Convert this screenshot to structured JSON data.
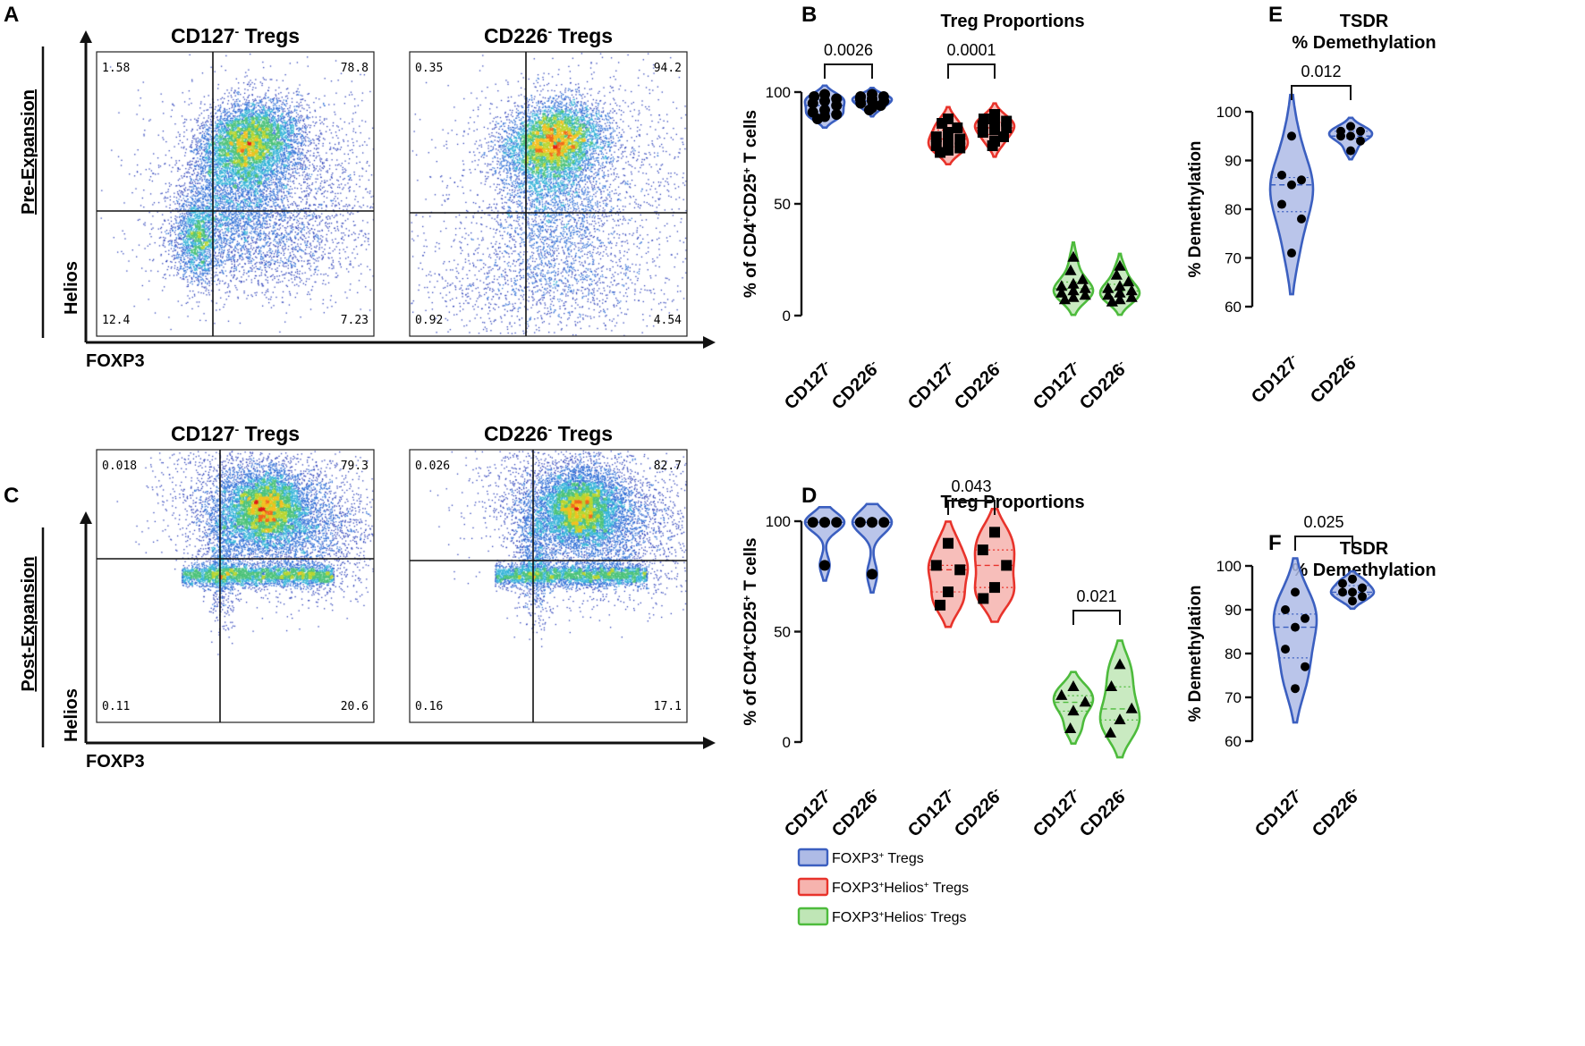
{
  "figure": {
    "panels": {
      "A": "A",
      "B": "B",
      "C": "C",
      "D": "D",
      "E": "E",
      "F": "F"
    }
  },
  "colors": {
    "blue": "#3b5fc0",
    "blue_fill": "#aebbe6",
    "red": "#e8332b",
    "red_fill": "#f6b3ae",
    "green": "#4dbb3c",
    "green_fill": "#bfe6b6",
    "axis": "#111111"
  },
  "flow": {
    "pre": {
      "side_label": "Pre-Expansion",
      "y_axis": "Helios",
      "x_axis": "FOXP3",
      "plots": [
        {
          "title_main": "CD127",
          "title_sup": "-",
          "title_rest": " Tregs",
          "q": {
            "ul": "1.58",
            "ur": "78.8",
            "ll": "12.4",
            "lr": "7.23"
          }
        },
        {
          "title_main": "CD226",
          "title_sup": "-",
          "title_rest": " Tregs",
          "q": {
            "ul": "0.35",
            "ur": "94.2",
            "ll": "0.92",
            "lr": "4.54"
          }
        }
      ]
    },
    "post": {
      "side_label": "Post-Expansion",
      "y_axis": "Helios",
      "x_axis": "FOXP3",
      "plots": [
        {
          "title_main": "CD127",
          "title_sup": "-",
          "title_rest": " Tregs",
          "q": {
            "ul": "0.018",
            "ur": "79.3",
            "ll": "0.11",
            "lr": "20.6"
          }
        },
        {
          "title_main": "CD226",
          "title_sup": "-",
          "title_rest": " Tregs",
          "q": {
            "ul": "0.026",
            "ur": "82.7",
            "ll": "0.16",
            "lr": "17.1"
          }
        }
      ]
    }
  },
  "legend": {
    "items": [
      {
        "text_a": "FOXP3",
        "sup_a": "+",
        "text_b": " Tregs",
        "sup_b": "",
        "text_c": "",
        "color": "blue"
      },
      {
        "text_a": "FOXP3",
        "sup_a": "+",
        "text_b": "Helios",
        "sup_b": "+",
        "text_c": " Tregs",
        "color": "red"
      },
      {
        "text_a": "FOXP3",
        "sup_a": "+",
        "text_b": "Helios",
        "sup_b": "-",
        "text_c": " Tregs",
        "color": "green"
      }
    ]
  },
  "chart_data": [
    {
      "id": "B",
      "type": "violin",
      "title": "Treg Proportions",
      "ylabel": "% of CD4+CD25+ T cells",
      "ylim": [
        0,
        100
      ],
      "yticks": [
        0,
        50,
        100
      ],
      "categories": [
        "CD127-",
        "CD226-",
        "CD127-",
        "CD226-",
        "CD127-",
        "CD226-"
      ],
      "series": [
        {
          "name": "FOXP3+ Tregs",
          "color": "blue",
          "marker": "circle",
          "groups": [
            [
              99,
              98,
              97,
              96,
              95,
              94,
              92,
              91,
              90,
              89,
              88
            ],
            [
              99,
              98,
              98,
              97,
              97,
              96,
              96,
              95,
              94,
              93,
              92
            ]
          ]
        },
        {
          "name": "FOXP3+Helios+ Tregs",
          "color": "red",
          "marker": "square",
          "groups": [
            [
              88,
              86,
              84,
              82,
              80,
              79,
              78,
              76,
              75,
              74,
              73
            ],
            [
              90,
              88,
              87,
              86,
              85,
              84,
              83,
              82,
              80,
              78,
              76
            ]
          ]
        },
        {
          "name": "FOXP3+Helios- Tregs",
          "color": "green",
          "marker": "triangle",
          "groups": [
            [
              26,
              20,
              16,
              14,
              13,
              12,
              11,
              10,
              9,
              8,
              7
            ],
            [
              22,
              18,
              15,
              13,
              12,
              11,
              10,
              9,
              8,
              7,
              6
            ]
          ]
        }
      ],
      "comparisons": [
        {
          "pair": [
            0,
            1
          ],
          "p": "0.0026"
        },
        {
          "pair": [
            2,
            3
          ],
          "p": "0.0001"
        }
      ]
    },
    {
      "id": "D",
      "type": "violin",
      "title": "Treg Proportions",
      "ylabel": "% of CD4+CD25+ T cells",
      "ylim": [
        0,
        100
      ],
      "yticks": [
        0,
        50,
        100
      ],
      "categories": [
        "CD127-",
        "CD226-",
        "CD127-",
        "CD226-",
        "CD127-",
        "CD226-"
      ],
      "series": [
        {
          "name": "FOXP3+ Tregs",
          "color": "blue",
          "marker": "circle",
          "groups": [
            [
              99.5,
              99.5,
              99.5,
              99.5,
              80
            ],
            [
              99.5,
              99.5,
              99.5,
              99.5,
              76
            ]
          ]
        },
        {
          "name": "FOXP3+Helios+ Tregs",
          "color": "red",
          "marker": "square",
          "groups": [
            [
              90,
              80,
              78,
              68,
              62
            ],
            [
              95,
              87,
              80,
              70,
              65
            ]
          ]
        },
        {
          "name": "FOXP3+Helios- Tregs",
          "color": "green",
          "marker": "triangle",
          "groups": [
            [
              25,
              21,
              18,
              14,
              6
            ],
            [
              35,
              25,
              15,
              10,
              4
            ]
          ]
        }
      ],
      "comparisons": [
        {
          "pair": [
            2,
            3
          ],
          "p": "0.043"
        },
        {
          "pair": [
            4,
            5
          ],
          "p": "0.021"
        }
      ]
    },
    {
      "id": "E",
      "type": "violin",
      "title": "TSDR",
      "subtitle": "% Demethylation",
      "ylabel": "% Demethylation",
      "ylim": [
        60,
        100
      ],
      "yticks": [
        60,
        70,
        80,
        90,
        100
      ],
      "categories": [
        "CD127-",
        "CD226-"
      ],
      "series": [
        {
          "name": "CD127-",
          "color": "blue",
          "marker": "circle",
          "groups": [
            [
              95,
              87,
              86,
              85,
              81,
              78,
              71
            ]
          ]
        },
        {
          "name": "CD226-",
          "color": "blue",
          "marker": "circle",
          "groups": [
            [
              97,
              96,
              96,
              95,
              95,
              94,
              92
            ]
          ]
        }
      ],
      "comparisons": [
        {
          "pair": [
            0,
            1
          ],
          "p": "0.012"
        }
      ]
    },
    {
      "id": "F",
      "type": "violin",
      "title": "TSDR",
      "subtitle": "% Demethylation",
      "ylabel": "% Demethylation",
      "ylim": [
        60,
        100
      ],
      "yticks": [
        60,
        70,
        80,
        90,
        100
      ],
      "categories": [
        "CD127-",
        "CD226-"
      ],
      "series": [
        {
          "name": "CD127-",
          "color": "blue",
          "marker": "circle",
          "groups": [
            [
              94,
              90,
              88,
              86,
              81,
              77,
              72
            ]
          ]
        },
        {
          "name": "CD226-",
          "color": "blue",
          "marker": "circle",
          "groups": [
            [
              97,
              96,
              95,
              94,
              94,
              93,
              92
            ]
          ]
        }
      ],
      "comparisons": [
        {
          "pair": [
            0,
            1
          ],
          "p": "0.025"
        }
      ]
    }
  ]
}
